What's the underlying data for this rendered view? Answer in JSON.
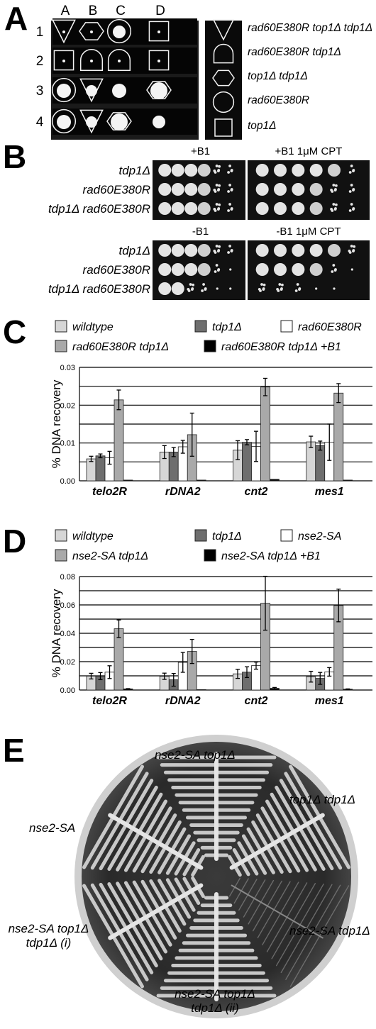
{
  "panels": {
    "a": {
      "letter": "A"
    },
    "b": {
      "letter": "B"
    },
    "c": {
      "letter": "C"
    },
    "d": {
      "letter": "D"
    },
    "e": {
      "letter": "E"
    }
  },
  "panelA": {
    "columns": [
      "A",
      "B",
      "C",
      "D"
    ],
    "rows": [
      "1",
      "2",
      "3",
      "4"
    ],
    "grid": [
      [
        "triangle-tall",
        "hexagon",
        "circle",
        "square"
      ],
      [
        "square",
        "dome",
        "dome",
        "square"
      ],
      [
        "circle",
        "triangle",
        "none",
        "hexagon"
      ],
      [
        "circle",
        "triangle",
        "hexagon",
        "none"
      ]
    ],
    "legend": [
      {
        "shape": "triangle",
        "label": "rad60E380R top1Δ tdp1Δ"
      },
      {
        "shape": "dome",
        "label": "rad60E380R tdp1Δ"
      },
      {
        "shape": "hexagon",
        "label": "top1Δ tdp1Δ"
      },
      {
        "shape": "circle",
        "label": "rad60E380R"
      },
      {
        "shape": "square",
        "label": "top1Δ"
      }
    ]
  },
  "panelB": {
    "conditions": [
      "+B1",
      "+B1 1μM CPT",
      "-B1",
      "-B1 1μM CPT"
    ],
    "strains": [
      "tdp1Δ",
      "rad60E380R",
      "tdp1Δ rad60E380R"
    ],
    "growth": [
      [
        [
          5,
          5,
          5,
          4,
          3,
          2
        ],
        [
          5,
          5,
          5,
          5,
          4,
          2
        ]
      ],
      [
        [
          5,
          5,
          5,
          4,
          3,
          2
        ],
        [
          5,
          5,
          5,
          4,
          3,
          2
        ]
      ],
      [
        [
          5,
          5,
          5,
          4,
          3,
          2
        ],
        [
          5,
          5,
          5,
          4,
          3,
          2
        ]
      ],
      [
        [
          5,
          5,
          5,
          4,
          3,
          2
        ],
        [
          5,
          5,
          5,
          5,
          4,
          3
        ]
      ],
      [
        [
          5,
          5,
          5,
          4,
          2,
          1
        ],
        [
          5,
          5,
          5,
          4,
          2,
          1
        ]
      ],
      [
        [
          5,
          5,
          3,
          2,
          1,
          1
        ],
        [
          3,
          3,
          2,
          1,
          1,
          0
        ]
      ]
    ]
  },
  "chart_data": [
    {
      "type": "bar",
      "panel": "C",
      "ylabel": "% DNA recovery",
      "ylim": [
        0,
        0.03
      ],
      "yticks": [
        "0.00",
        "0.01",
        "0.02",
        "0.03"
      ],
      "categories": [
        "telo2R",
        "rDNA2",
        "cnt2",
        "mes1"
      ],
      "colors": [
        "#d6d6d6",
        "#6e6e6e",
        "#ffffff",
        "#a9a9a9",
        "#000000"
      ],
      "series": [
        {
          "name": "wildtype",
          "values": [
            0.0058,
            0.0076,
            0.0081,
            0.0103
          ],
          "errors": [
            0.0007,
            0.0017,
            0.0025,
            0.0015
          ]
        },
        {
          "name": "tdp1Δ",
          "values": [
            0.0066,
            0.0076,
            0.0102,
            0.0093
          ],
          "errors": [
            0.0005,
            0.0012,
            0.0007,
            0.0012
          ]
        },
        {
          "name": "rad60E380R",
          "values": [
            0.0061,
            0.009,
            0.0091,
            0.0102
          ],
          "errors": [
            0.0017,
            0.0017,
            0.004,
            0.0048
          ]
        },
        {
          "name": "rad60E380R tdp1Δ",
          "values": [
            0.0214,
            0.0122,
            0.0248,
            0.0232
          ],
          "errors": [
            0.0026,
            0.0057,
            0.0023,
            0.0025
          ]
        },
        {
          "name": "rad60E380R tdp1Δ +B1",
          "values": [
            0.0002,
            0.0002,
            0.0004,
            0.0002
          ],
          "errors": [
            0,
            0,
            0,
            0
          ]
        }
      ]
    },
    {
      "type": "bar",
      "panel": "D",
      "ylabel": "% DNA recovery",
      "ylim": [
        0,
        0.08
      ],
      "yticks": [
        "0.00",
        "0.02",
        "0.04",
        "0.06",
        "0.08"
      ],
      "categories": [
        "telo2R",
        "rDNA2",
        "cnt2",
        "mes1"
      ],
      "colors": [
        "#d6d6d6",
        "#6e6e6e",
        "#ffffff",
        "#a9a9a9",
        "#000000"
      ],
      "series": [
        {
          "name": "wildtype",
          "values": [
            0.0098,
            0.0097,
            0.0114,
            0.0094
          ],
          "errors": [
            0.002,
            0.0022,
            0.0032,
            0.0038
          ]
        },
        {
          "name": "tdp1Δ",
          "values": [
            0.0098,
            0.0072,
            0.0126,
            0.0082
          ],
          "errors": [
            0.0025,
            0.0045,
            0.0038,
            0.0042
          ]
        },
        {
          "name": "nse2-SA",
          "values": [
            0.0126,
            0.0195,
            0.0172,
            0.0128
          ],
          "errors": [
            0.0045,
            0.007,
            0.0025,
            0.003
          ]
        },
        {
          "name": "nse2-SA tdp1Δ",
          "values": [
            0.0432,
            0.0272,
            0.0612,
            0.0596
          ],
          "errors": [
            0.0062,
            0.0085,
            0.019,
            0.0115
          ]
        },
        {
          "name": "nse2-SA tdp1Δ +B1",
          "values": [
            0.0008,
            0.0003,
            0.0012,
            0.0006
          ],
          "errors": [
            0.0002,
            0,
            0.0006,
            0.0002
          ]
        }
      ]
    }
  ],
  "panelE": {
    "sectors": [
      {
        "label": "nse2-SA top1Δ",
        "growth": "heavy"
      },
      {
        "label": "top1Δ tdp1Δ",
        "growth": "heavy"
      },
      {
        "label": "nse2-SA tdp1Δ",
        "growth": "sparse"
      },
      {
        "label_line1": "nse2-SA top1Δ",
        "label_line2": "tdp1Δ (ii)",
        "growth": "heavy"
      },
      {
        "label_line1": "nse2-SA top1Δ",
        "label_line2": "tdp1Δ (i)",
        "growth": "heavy"
      },
      {
        "label": "nse2-SA",
        "growth": "heavy"
      }
    ]
  }
}
